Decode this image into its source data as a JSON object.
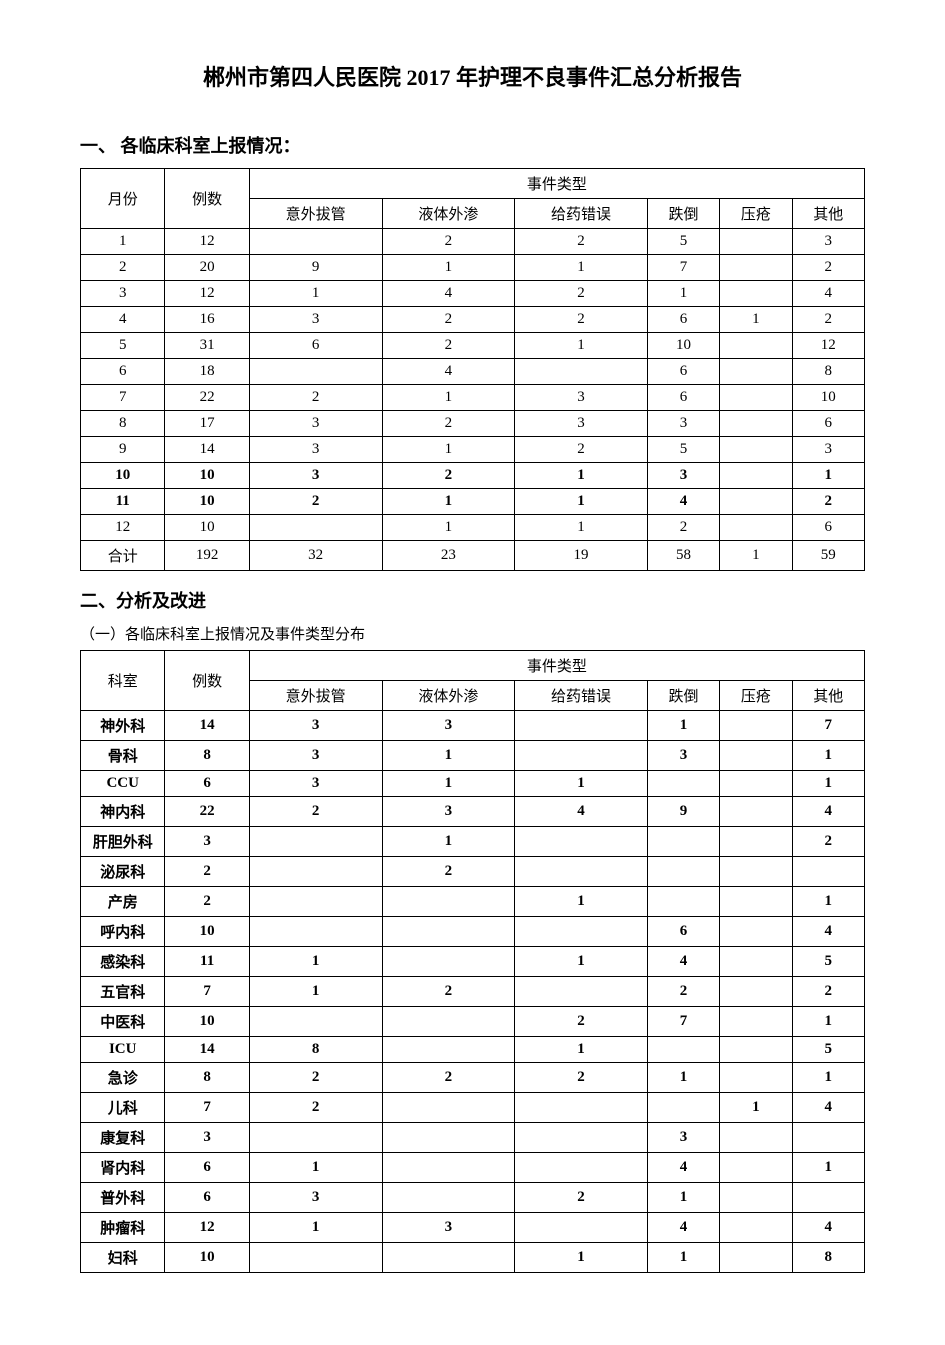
{
  "title": "郴州市第四人民医院 2017 年护理不良事件汇总分析报告",
  "section1_heading": "一、 各临床科室上报情况：",
  "section2_heading": "二、分析及改进",
  "section2_sub": "（一）各临床科室上报情况及事件类型分布",
  "table_common": {
    "event_type_header": "事件类型",
    "count_header": "例数",
    "cols": [
      "意外拔管",
      "液体外渗",
      "给药错误",
      "跌倒",
      "压疮",
      "其他"
    ]
  },
  "table1": {
    "left_header": "月份",
    "rows": [
      {
        "m": "1",
        "n": "12",
        "a": "",
        "b": "2",
        "c": "2",
        "d": "5",
        "e": "",
        "f": "3",
        "bold": false
      },
      {
        "m": "2",
        "n": "20",
        "a": "9",
        "b": "1",
        "c": "1",
        "d": "7",
        "e": "",
        "f": "2",
        "bold": false
      },
      {
        "m": "3",
        "n": "12",
        "a": "1",
        "b": "4",
        "c": "2",
        "d": "1",
        "e": "",
        "f": "4",
        "bold": false
      },
      {
        "m": "4",
        "n": "16",
        "a": "3",
        "b": "2",
        "c": "2",
        "d": "6",
        "e": "1",
        "f": "2",
        "bold": false
      },
      {
        "m": "5",
        "n": "31",
        "a": "6",
        "b": "2",
        "c": "1",
        "d": "10",
        "e": "",
        "f": "12",
        "bold": false
      },
      {
        "m": "6",
        "n": "18",
        "a": "",
        "b": "4",
        "c": "",
        "d": "6",
        "e": "",
        "f": "8",
        "bold": false
      },
      {
        "m": "7",
        "n": "22",
        "a": "2",
        "b": "1",
        "c": "3",
        "d": "6",
        "e": "",
        "f": "10",
        "bold": false
      },
      {
        "m": "8",
        "n": "17",
        "a": "3",
        "b": "2",
        "c": "3",
        "d": "3",
        "e": "",
        "f": "6",
        "bold": false
      },
      {
        "m": "9",
        "n": "14",
        "a": "3",
        "b": "1",
        "c": "2",
        "d": "5",
        "e": "",
        "f": "3",
        "bold": false
      },
      {
        "m": "10",
        "n": "10",
        "a": "3",
        "b": "2",
        "c": "1",
        "d": "3",
        "e": "",
        "f": "1",
        "bold": true
      },
      {
        "m": "11",
        "n": "10",
        "a": "2",
        "b": "1",
        "c": "1",
        "d": "4",
        "e": "",
        "f": "2",
        "bold": true
      },
      {
        "m": "12",
        "n": "10",
        "a": "",
        "b": "1",
        "c": "1",
        "d": "2",
        "e": "",
        "f": "6",
        "bold": false
      },
      {
        "m": "合计",
        "n": "192",
        "a": "32",
        "b": "23",
        "c": "19",
        "d": "58",
        "e": "1",
        "f": "59",
        "bold": false
      }
    ]
  },
  "table2": {
    "left_header": "科室",
    "rows": [
      {
        "m": "神外科",
        "n": "14",
        "a": "3",
        "b": "3",
        "c": "",
        "d": "1",
        "e": "",
        "f": "7",
        "bold": true
      },
      {
        "m": "骨科",
        "n": "8",
        "a": "3",
        "b": "1",
        "c": "",
        "d": "3",
        "e": "",
        "f": "1",
        "bold": true
      },
      {
        "m": "CCU",
        "n": "6",
        "a": "3",
        "b": "1",
        "c": "1",
        "d": "",
        "e": "",
        "f": "1",
        "bold": true
      },
      {
        "m": "神内科",
        "n": "22",
        "a": "2",
        "b": "3",
        "c": "4",
        "d": "9",
        "e": "",
        "f": "4",
        "bold": true
      },
      {
        "m": "肝胆外科",
        "n": "3",
        "a": "",
        "b": "1",
        "c": "",
        "d": "",
        "e": "",
        "f": "2",
        "bold": true
      },
      {
        "m": "泌尿科",
        "n": "2",
        "a": "",
        "b": "2",
        "c": "",
        "d": "",
        "e": "",
        "f": "",
        "bold": true
      },
      {
        "m": "产房",
        "n": "2",
        "a": "",
        "b": "",
        "c": "1",
        "d": "",
        "e": "",
        "f": "1",
        "bold": true
      },
      {
        "m": "呼内科",
        "n": "10",
        "a": "",
        "b": "",
        "c": "",
        "d": "6",
        "e": "",
        "f": "4",
        "bold": true
      },
      {
        "m": "感染科",
        "n": "11",
        "a": "1",
        "b": "",
        "c": "1",
        "d": "4",
        "e": "",
        "f": "5",
        "bold": true
      },
      {
        "m": "五官科",
        "n": "7",
        "a": "1",
        "b": "2",
        "c": "",
        "d": "2",
        "e": "",
        "f": "2",
        "bold": true
      },
      {
        "m": "中医科",
        "n": "10",
        "a": "",
        "b": "",
        "c": "2",
        "d": "7",
        "e": "",
        "f": "1",
        "bold": true
      },
      {
        "m": "ICU",
        "n": "14",
        "a": "8",
        "b": "",
        "c": "1",
        "d": "",
        "e": "",
        "f": "5",
        "bold": true
      },
      {
        "m": "急诊",
        "n": "8",
        "a": "2",
        "b": "2",
        "c": "2",
        "d": "1",
        "e": "",
        "f": "1",
        "bold": true
      },
      {
        "m": "儿科",
        "n": "7",
        "a": "2",
        "b": "",
        "c": "",
        "d": "",
        "e": "1",
        "f": "4",
        "bold": true
      },
      {
        "m": "康复科",
        "n": "3",
        "a": "",
        "b": "",
        "c": "",
        "d": "3",
        "e": "",
        "f": "",
        "bold": true
      },
      {
        "m": "肾内科",
        "n": "6",
        "a": "1",
        "b": "",
        "c": "",
        "d": "4",
        "e": "",
        "f": "1",
        "bold": true
      },
      {
        "m": "普外科",
        "n": "6",
        "a": "3",
        "b": "",
        "c": "2",
        "d": "1",
        "e": "",
        "f": "",
        "bold": true
      },
      {
        "m": "肿瘤科",
        "n": "12",
        "a": "1",
        "b": "3",
        "c": "",
        "d": "4",
        "e": "",
        "f": "4",
        "bold": true
      },
      {
        "m": "妇科",
        "n": "10",
        "a": "",
        "b": "",
        "c": "1",
        "d": "1",
        "e": "",
        "f": "8",
        "bold": true
      }
    ]
  },
  "styling": {
    "font_family": "SimSun",
    "title_fontsize_pt": 22,
    "heading_fontsize_pt": 18,
    "body_fontsize_pt": 15,
    "border_color": "#000000",
    "background_color": "#ffffff",
    "text_color": "#000000"
  }
}
